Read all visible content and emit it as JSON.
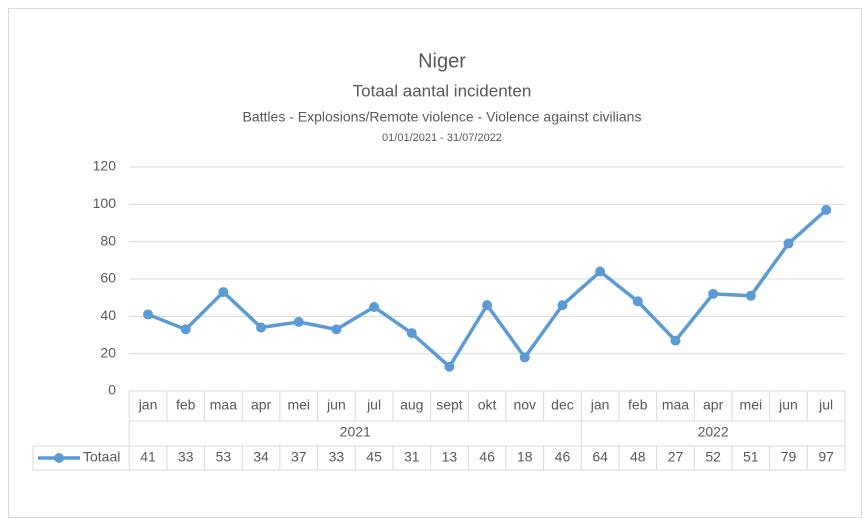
{
  "chart_data": {
    "type": "line",
    "title": "Niger",
    "subtitle": "Totaal aantal incidenten",
    "subtitle2": "Battles - Explosions/Remote violence - Violence against civilians",
    "date_range": "01/01/2021 - 31/07/2022",
    "category_groups": [
      {
        "name": "2021",
        "categories": [
          "jan",
          "feb",
          "maa",
          "apr",
          "mei",
          "jun",
          "jul",
          "aug",
          "sept",
          "okt",
          "nov",
          "dec"
        ]
      },
      {
        "name": "2022",
        "categories": [
          "jan",
          "feb",
          "maa",
          "apr",
          "mei",
          "jun",
          "jul"
        ]
      }
    ],
    "series": [
      {
        "name": "Totaal",
        "color": "#5b9bd5",
        "values": [
          41,
          33,
          53,
          34,
          37,
          33,
          45,
          31,
          13,
          46,
          18,
          46,
          64,
          48,
          27,
          52,
          51,
          79,
          97
        ]
      }
    ],
    "ylim": [
      0,
      120
    ],
    "yticks": [
      0,
      20,
      40,
      60,
      80,
      100,
      120
    ],
    "grid": true,
    "data_table": true
  }
}
